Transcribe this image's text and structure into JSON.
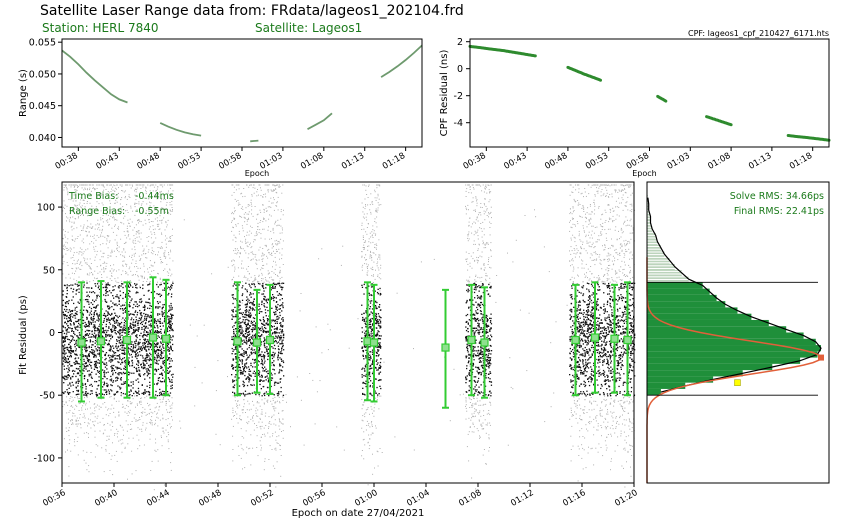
{
  "header": {
    "title": "Satellite Laser Range data from: FRdata/lageos1_202104.frd",
    "station": "Station: HERL 7840",
    "satellite": "Satellite: Lageos1"
  },
  "colors": {
    "range_line": "#6e9a6e",
    "cpf_points": "#2e8b2e",
    "annotation_green": "#1b7a1b",
    "bar_green": "#1f8f3a",
    "errorbar_green": "#33cc33",
    "gaussian_orange": "#e2603a",
    "rejected_grey": "#b0b0b0",
    "accepted_black": "#111111"
  },
  "chart_data": [
    {
      "id": "range",
      "type": "line",
      "title": "",
      "xlabel": "Epoch",
      "ylabel": "Range (s)",
      "xlim": [
        "00:36",
        "01:20"
      ],
      "ylim": [
        0.0385,
        0.0555
      ],
      "xticks": [
        "00:38",
        "00:43",
        "00:48",
        "00:53",
        "00:58",
        "01:03",
        "01:08",
        "01:13",
        "01:18"
      ],
      "yticks": [
        "0.040",
        "0.045",
        "0.050",
        "0.055"
      ],
      "series": [
        {
          "x": [
            "00:36",
            "00:37",
            "00:38",
            "00:39",
            "00:40",
            "00:41",
            "00:42",
            "00:43",
            "00:44"
          ],
          "y": [
            0.0537,
            0.0527,
            0.0515,
            0.0502,
            0.049,
            0.0479,
            0.0468,
            0.046,
            0.0455
          ]
        },
        {
          "x": [
            "00:48",
            "00:49",
            "00:50",
            "00:51",
            "00:52",
            "00:53"
          ],
          "y": [
            0.0423,
            0.0417,
            0.0412,
            0.0408,
            0.0405,
            0.0403
          ]
        },
        {
          "x": [
            "00:59",
            "01:00"
          ],
          "y": [
            0.0394,
            0.0395
          ]
        },
        {
          "x": [
            "01:06",
            "01:07",
            "01:08",
            "01:09"
          ],
          "y": [
            0.0413,
            0.042,
            0.0427,
            0.0438
          ]
        },
        {
          "x": [
            "01:15",
            "01:16",
            "01:17",
            "01:18",
            "01:19",
            "01:20"
          ],
          "y": [
            0.0495,
            0.0503,
            0.0512,
            0.0522,
            0.0533,
            0.0545
          ]
        }
      ]
    },
    {
      "id": "cpf",
      "type": "scatter",
      "title": "CPF: lageos1_cpf_210427_6171.hts",
      "xlabel": "Epoch",
      "ylabel": "CPF Residual (ns)",
      "xlim": [
        "00:36",
        "01:20"
      ],
      "ylim": [
        -5.8,
        2.2
      ],
      "xticks": [
        "00:38",
        "00:43",
        "00:48",
        "00:53",
        "00:58",
        "01:03",
        "01:08",
        "01:13",
        "01:18"
      ],
      "yticks": [
        "2",
        "0",
        "-2",
        "-4"
      ],
      "series": [
        {
          "x": [
            "00:36",
            "00:37",
            "00:38",
            "00:39",
            "00:40",
            "00:41",
            "00:42",
            "00:43",
            "00:44"
          ],
          "y": [
            1.65,
            1.58,
            1.5,
            1.42,
            1.35,
            1.25,
            1.15,
            1.05,
            0.95
          ]
        },
        {
          "x": [
            "00:48",
            "00:49",
            "00:50",
            "00:51",
            "00:52"
          ],
          "y": [
            0.1,
            -0.15,
            -0.4,
            -0.62,
            -0.85
          ]
        },
        {
          "x": [
            "00:59",
            "01:00"
          ],
          "y": [
            -2.05,
            -2.4
          ]
        },
        {
          "x": [
            "01:05",
            "01:06",
            "01:07",
            "01:08"
          ],
          "y": [
            -3.55,
            -3.75,
            -3.95,
            -4.15
          ]
        },
        {
          "x": [
            "01:15",
            "01:16",
            "01:17",
            "01:18",
            "01:19",
            "01:20"
          ],
          "y": [
            -4.95,
            -5.02,
            -5.08,
            -5.15,
            -5.22,
            -5.3
          ]
        }
      ]
    },
    {
      "id": "fit",
      "type": "scatter",
      "title": "",
      "xlabel": "Epoch on date 27/04/2021",
      "ylabel": "Fit Residual (ps)",
      "xlim": [
        "00:36",
        "01:20"
      ],
      "ylim": [
        -120,
        120
      ],
      "xticks": [
        "00:36",
        "00:40",
        "00:44",
        "00:48",
        "00:52",
        "00:56",
        "01:00",
        "01:04",
        "01:08",
        "01:12",
        "01:16",
        "01:20"
      ],
      "yticks": [
        "100",
        "50",
        "0",
        "-50",
        "-100"
      ],
      "annotations": [
        {
          "label": "Time Bias:",
          "value": "-0.44ms"
        },
        {
          "label": "Range Bias:",
          "value": "-0.55m"
        }
      ],
      "accepted_band": [
        -50,
        40
      ],
      "point_blocks": [
        {
          "start": "00:36",
          "end": "00:44.5"
        },
        {
          "start": "00:49",
          "end": "00:53"
        },
        {
          "start": "00:59",
          "end": "01:00.5"
        },
        {
          "start": "01:07",
          "end": "01:09"
        },
        {
          "start": "01:15",
          "end": "01:20"
        }
      ],
      "normal_points": [
        {
          "x": "00:37.5",
          "y": -8,
          "lo": -55,
          "hi": 40
        },
        {
          "x": "00:39",
          "y": -7,
          "lo": -52,
          "hi": 41
        },
        {
          "x": "00:41",
          "y": -6,
          "lo": -52,
          "hi": 40
        },
        {
          "x": "00:43",
          "y": -4,
          "lo": -52,
          "hi": 44
        },
        {
          "x": "00:44",
          "y": -5,
          "lo": -50,
          "hi": 42
        },
        {
          "x": "00:49.5",
          "y": -7,
          "lo": -50,
          "hi": 40
        },
        {
          "x": "00:51",
          "y": -8,
          "lo": -48,
          "hi": 34
        },
        {
          "x": "00:52",
          "y": -6,
          "lo": -49,
          "hi": 38
        },
        {
          "x": "00:59.5",
          "y": -7,
          "lo": -54,
          "hi": 40
        },
        {
          "x": "01:00",
          "y": -8,
          "lo": -55,
          "hi": 38
        },
        {
          "x": "01:05.5",
          "y": -12,
          "lo": -60,
          "hi": 34
        },
        {
          "x": "01:07.5",
          "y": -6,
          "lo": -50,
          "hi": 38
        },
        {
          "x": "01:08.5",
          "y": -8,
          "lo": -52,
          "hi": 36
        },
        {
          "x": "01:15.5",
          "y": -6,
          "lo": -50,
          "hi": 38
        },
        {
          "x": "01:17",
          "y": -4,
          "lo": -48,
          "hi": 40
        },
        {
          "x": "01:18.5",
          "y": -5,
          "lo": -48,
          "hi": 38
        },
        {
          "x": "01:19.5",
          "y": -6,
          "lo": -50,
          "hi": 40
        }
      ]
    },
    {
      "id": "histogram",
      "type": "bar",
      "title": "",
      "orientation": "horizontal",
      "ylim": [
        -120,
        120
      ],
      "annotations": [
        {
          "label": "Solve RMS:",
          "value": "34.66ps"
        },
        {
          "label": "Final RMS:",
          "value": "22.41ps"
        }
      ],
      "threshold_lines": [
        40,
        -50
      ],
      "bin_width": 5,
      "bins_lower": [
        -50,
        -45,
        -40,
        -35,
        -30,
        -25,
        -20,
        -15,
        -10,
        -5,
        0,
        5,
        10,
        15,
        20,
        25,
        30,
        35,
        40,
        45,
        50,
        55,
        60,
        65,
        70,
        75,
        80,
        85,
        90,
        95,
        100,
        105
      ],
      "counts": [
        8,
        22,
        38,
        55,
        72,
        88,
        98,
        100,
        97,
        90,
        80,
        70,
        60,
        52,
        45,
        40,
        36,
        32,
        24,
        20,
        16,
        13,
        10,
        8,
        6,
        5,
        3,
        2,
        2,
        1,
        1,
        0.5
      ],
      "peak_marker": {
        "y": -20,
        "value": 100
      },
      "low_marker": {
        "y": -40,
        "value": 52
      }
    }
  ]
}
